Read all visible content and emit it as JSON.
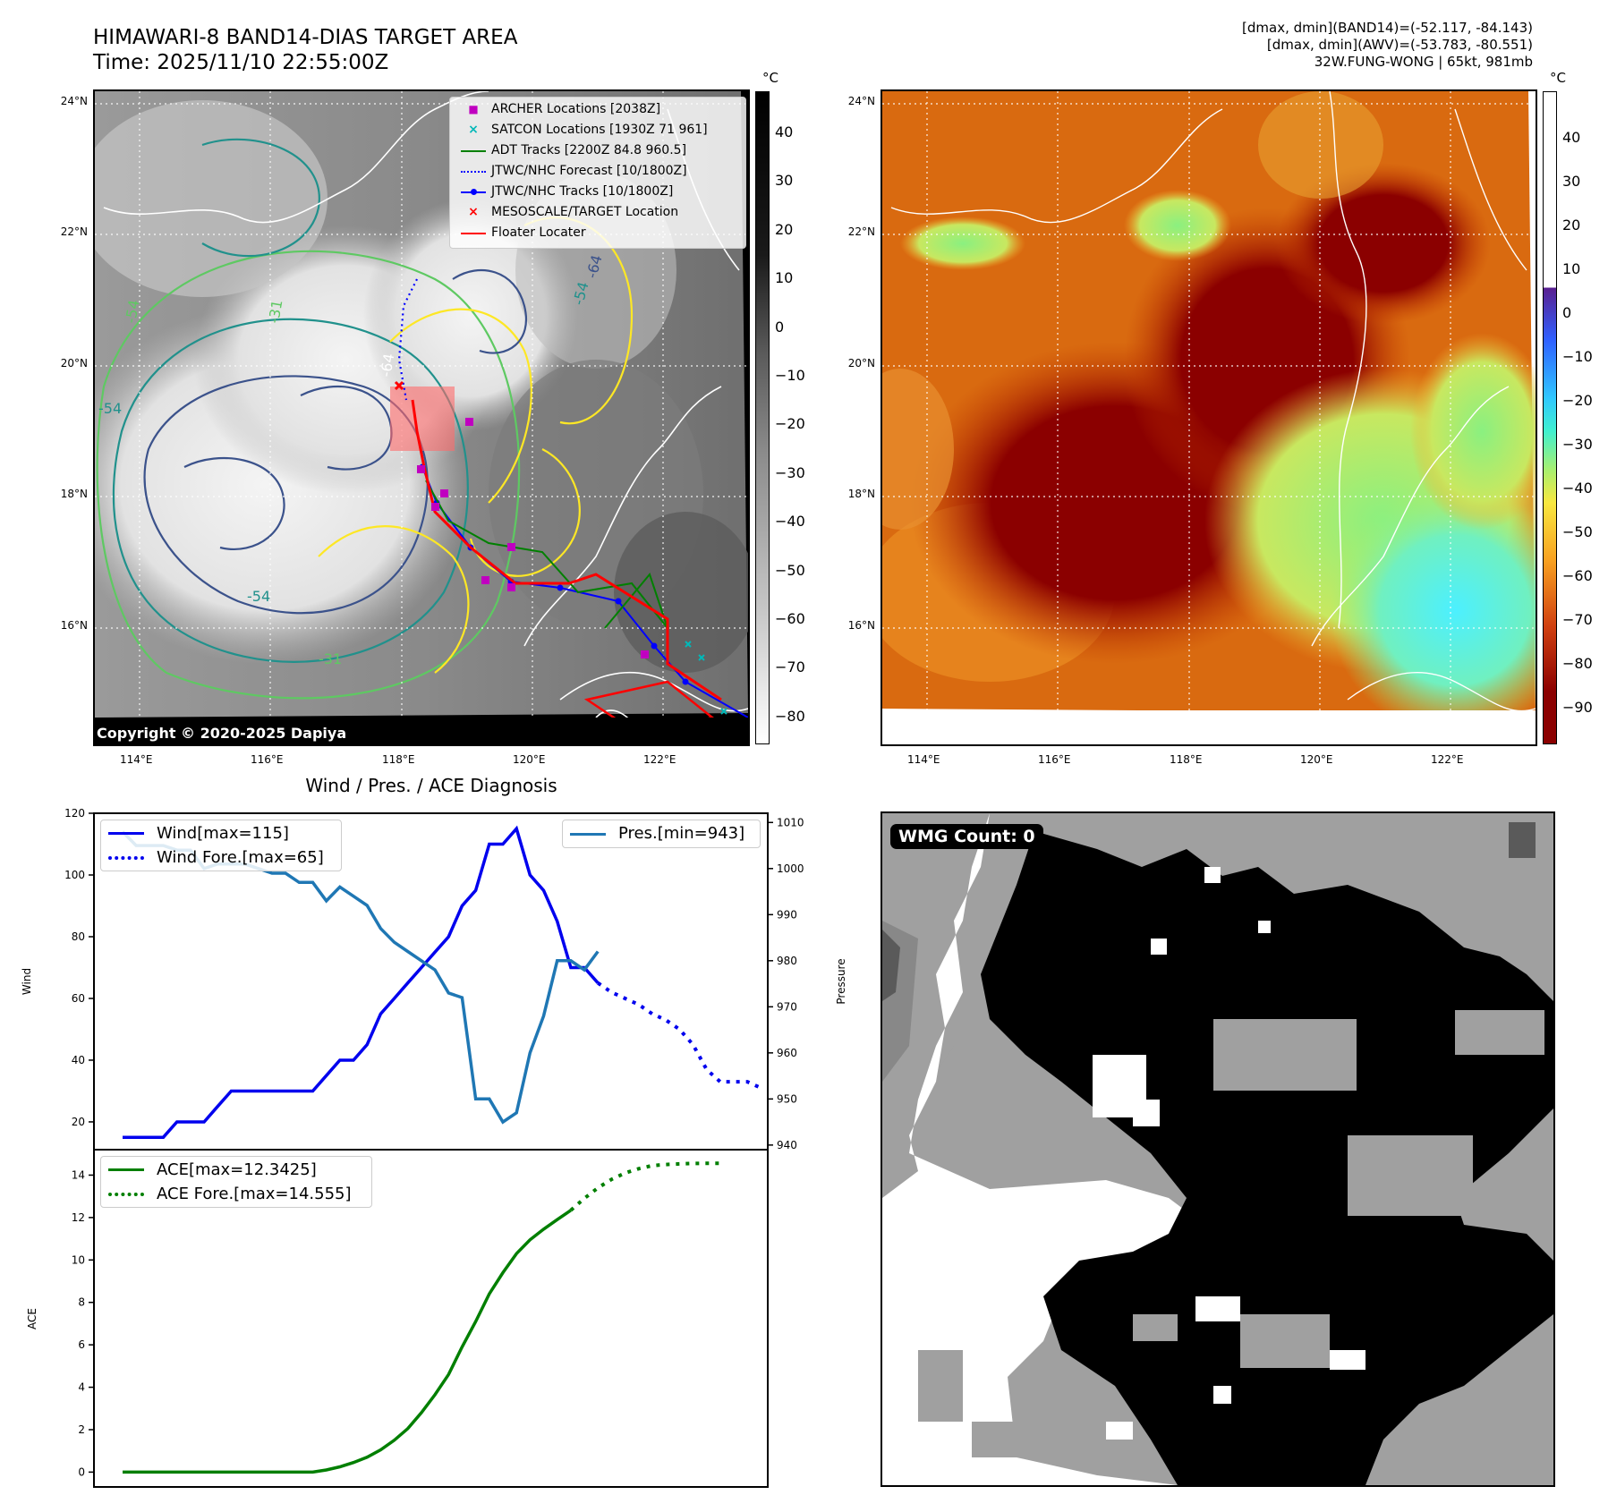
{
  "header": {
    "title_line1": "HIMAWARI-8 BAND14-DIAS TARGET AREA",
    "title_line2": "Time: 2025/11/10 22:55:00Z",
    "info_line1": "[dmax, dmin](BAND14)=(-52.117, -84.143)",
    "info_line2": "[dmax, dmin](AWV)=(-53.783, -80.551)",
    "info_line3": "32W.FUNG-WONG | 65kt, 981mb"
  },
  "map": {
    "lon_labels": [
      "114°E",
      "116°E",
      "118°E",
      "120°E",
      "122°E"
    ],
    "lat_labels": [
      "24°N",
      "22°N",
      "20°N",
      "18°N",
      "16°N"
    ],
    "copyright": "Copyright © 2020-2025 Dapiya",
    "contour_labels": [
      "-54",
      "-54",
      "-31",
      "-64",
      "-54",
      "-64",
      "-54",
      "-31"
    ],
    "legend": [
      {
        "label": "ARCHER Locations [2038Z]",
        "color": "#c000c0",
        "kind": "square-marker"
      },
      {
        "label": "SATCON Locations [1930Z 71 961]",
        "color": "#00b8b8",
        "kind": "x-marker"
      },
      {
        "label": "ADT Tracks [2200Z 84.8 960.5]",
        "color": "#008000",
        "kind": "line"
      },
      {
        "label": "JTWC/NHC Forecast [10/1800Z]",
        "color": "#0000ff",
        "kind": "dotted"
      },
      {
        "label": "JTWC/NHC Tracks [10/1800Z]",
        "color": "#0000ff",
        "kind": "line-dot"
      },
      {
        "label": "MESOSCALE/TARGET Location",
        "color": "#ff0000",
        "kind": "x-marker"
      },
      {
        "label": "Floater Locater",
        "color": "#ff0000",
        "kind": "line"
      }
    ]
  },
  "colorbar_gray": {
    "unit": "°C",
    "ticks": [
      "40",
      "30",
      "20",
      "10",
      "0",
      "−10",
      "−20",
      "−30",
      "−40",
      "−50",
      "−60",
      "−70",
      "−80"
    ]
  },
  "colorbar_color": {
    "unit": "°C",
    "ticks": [
      "40",
      "30",
      "20",
      "10",
      "0",
      "−10",
      "−20",
      "−30",
      "−40",
      "−50",
      "−60",
      "−70",
      "−80",
      "−90"
    ]
  },
  "wmg": {
    "label": "WMG Count: 0"
  },
  "chart_data": [
    {
      "type": "line",
      "title": "Wind / Pres. / ACE Diagnosis",
      "ylabel": "Wind",
      "y2label": "Pressure",
      "ylim": [
        11,
        120
      ],
      "y2lim": [
        939,
        1012
      ],
      "yticks": [
        20,
        40,
        60,
        80,
        100,
        120
      ],
      "y2ticks": [
        940,
        950,
        960,
        970,
        980,
        990,
        1000,
        1010
      ],
      "x_index_range": [
        0,
        45
      ],
      "series": [
        {
          "name": "Wind[max=115]",
          "color": "#0000ee",
          "style": "solid",
          "values": [
            15,
            15,
            15,
            15,
            20,
            20,
            20,
            25,
            30,
            30,
            30,
            30,
            30,
            30,
            30,
            35,
            40,
            40,
            45,
            55,
            60,
            65,
            70,
            75,
            80,
            90,
            95,
            110,
            110,
            115,
            100,
            95,
            85,
            70,
            70,
            65
          ]
        },
        {
          "name": "Wind Fore.[max=65]",
          "color": "#0000ee",
          "style": "dotted",
          "x_start": 35,
          "values": [
            65,
            62,
            60,
            58,
            55,
            53,
            50,
            45,
            37,
            33,
            33,
            33,
            31
          ]
        },
        {
          "name": "Pres.[min=943]",
          "color": "#1f77b4",
          "style": "solid",
          "axis": "right",
          "values": [
            1008,
            1005,
            1005,
            1005,
            1004,
            1004,
            1000,
            1001,
            1001,
            1001,
            1000,
            999,
            999,
            997,
            997,
            993,
            996,
            994,
            992,
            987,
            984,
            982,
            980,
            978,
            973,
            972,
            950,
            950,
            945,
            947,
            960,
            968,
            980,
            980,
            978,
            982
          ]
        }
      ]
    },
    {
      "type": "line",
      "ylabel": "ACE",
      "ylim": [
        -0.7,
        15.2
      ],
      "yticks": [
        0,
        2,
        4,
        6,
        8,
        10,
        12,
        14
      ],
      "x_index_range": [
        0,
        45
      ],
      "series": [
        {
          "name": "ACE[max=12.3425]",
          "color": "#007f00",
          "style": "solid",
          "values": [
            0,
            0,
            0,
            0,
            0,
            0,
            0,
            0,
            0,
            0,
            0,
            0,
            0,
            0,
            0,
            0.1,
            0.25,
            0.45,
            0.7,
            1.05,
            1.5,
            2.05,
            2.8,
            3.65,
            4.6,
            5.9,
            7.1,
            8.4,
            9.4,
            10.3,
            10.95,
            11.45,
            11.9,
            12.3425
          ]
        },
        {
          "name": "ACE Fore.[max=14.555]",
          "color": "#007f00",
          "style": "dotted",
          "x_start": 33,
          "values": [
            12.3425,
            12.9,
            13.4,
            13.8,
            14.1,
            14.3,
            14.45,
            14.5,
            14.53,
            14.55,
            14.555,
            14.555
          ]
        }
      ]
    }
  ]
}
